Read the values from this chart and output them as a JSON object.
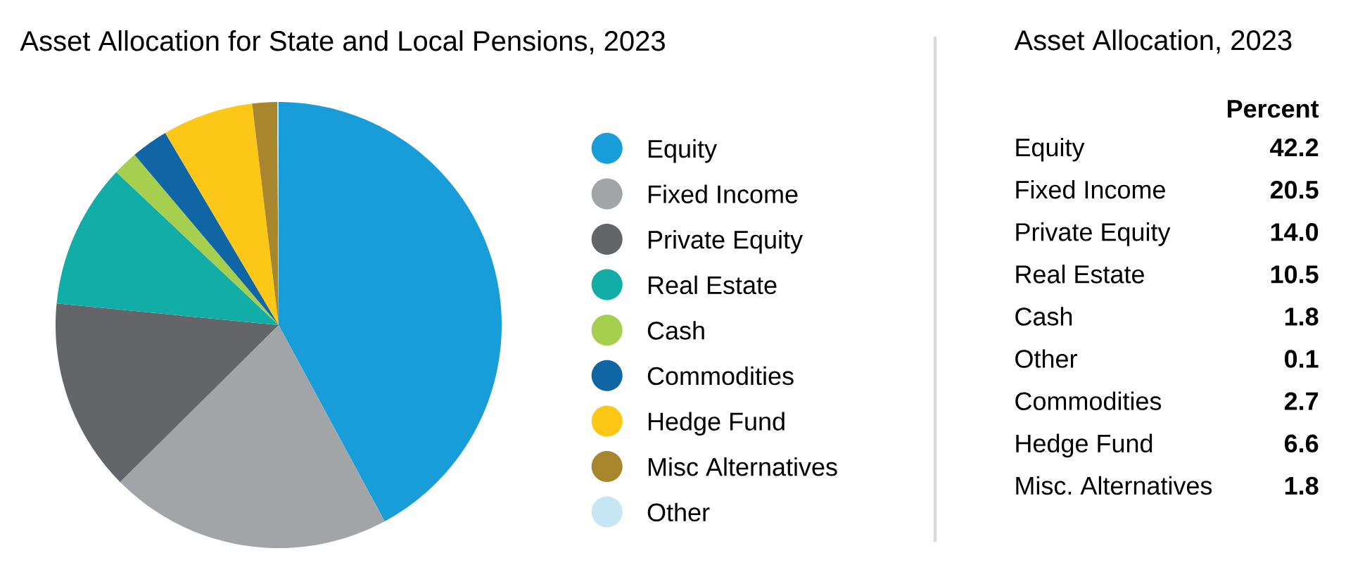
{
  "chart_data": [
    {
      "type": "pie",
      "title": "Asset Allocation for State and Local Pensions, 2023",
      "categories": [
        "Equity",
        "Fixed Income",
        "Private Equity",
        "Real Estate",
        "Cash",
        "Commodities",
        "Hedge Fund",
        "Misc Alternatives",
        "Other"
      ],
      "values": [
        42.2,
        20.5,
        14.0,
        10.5,
        1.8,
        2.7,
        6.6,
        1.8,
        0.1
      ],
      "colors": [
        "#199dd8",
        "#a2a5a8",
        "#636569",
        "#13ada7",
        "#a7cf4f",
        "#1066a5",
        "#fdc717",
        "#a8862e",
        "#c6e6f6"
      ],
      "legend": "right"
    },
    {
      "type": "other",
      "title": "Asset Allocation, 2023",
      "ylabel": "Percent",
      "categories": [
        "Equity",
        "Fixed Income",
        "Private Equity",
        "Real Estate",
        "Cash",
        "Other",
        "Commodities",
        "Hedge Fund",
        "Misc. Alternatives"
      ],
      "value_labels": [
        "42.2",
        "20.5",
        "14.0",
        "10.5",
        "1.8",
        "0.1",
        "2.7",
        "6.6",
        "1.8"
      ]
    }
  ]
}
